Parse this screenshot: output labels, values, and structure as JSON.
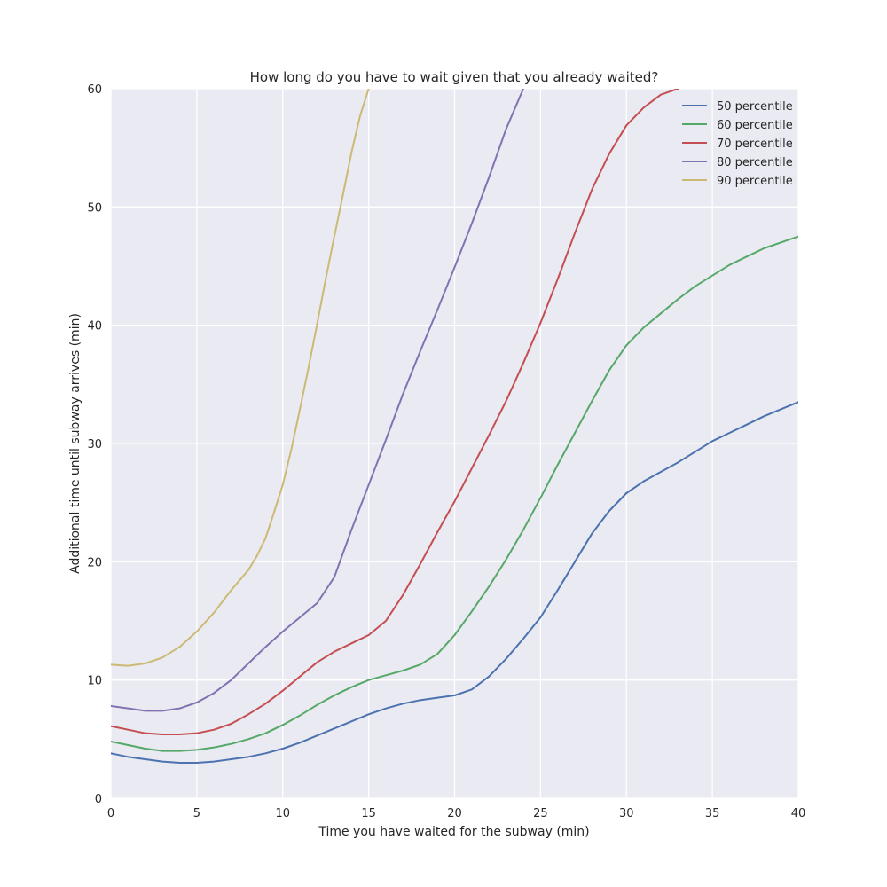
{
  "chart_data": {
    "type": "line",
    "title": "How long do you have to wait given that you already waited?",
    "xlabel": "Time you have waited for the subway (min)",
    "ylabel": "Additional time until subway arrives (min)",
    "xlim": [
      0,
      40
    ],
    "ylim": [
      0,
      60
    ],
    "xticks": [
      0,
      5,
      10,
      15,
      20,
      25,
      30,
      35,
      40
    ],
    "yticks": [
      0,
      10,
      20,
      30,
      40,
      50,
      60
    ],
    "grid": true,
    "legend_position": "top-right",
    "background": "#eaeaf2",
    "series": [
      {
        "name": "50 percentile",
        "color": "#4c72b0",
        "x": [
          0,
          1,
          2,
          3,
          4,
          5,
          6,
          7,
          8,
          9,
          10,
          11,
          12,
          13,
          14,
          15,
          16,
          17,
          18,
          19,
          20,
          21,
          22,
          23,
          24,
          25,
          26,
          27,
          28,
          29,
          30,
          31,
          32,
          33,
          34,
          35,
          36,
          37,
          38,
          39,
          40
        ],
        "values": [
          3.8,
          3.5,
          3.3,
          3.1,
          3.0,
          3.0,
          3.1,
          3.3,
          3.5,
          3.8,
          4.2,
          4.7,
          5.3,
          5.9,
          6.5,
          7.1,
          7.6,
          8.0,
          8.3,
          8.5,
          8.7,
          9.2,
          10.3,
          11.8,
          13.5,
          15.3,
          17.6,
          20.0,
          22.4,
          24.3,
          25.8,
          26.8,
          27.6,
          28.4,
          29.3,
          30.2,
          30.9,
          31.6,
          32.3,
          32.9,
          33.5
        ]
      },
      {
        "name": "60 percentile",
        "color": "#55a868",
        "x": [
          0,
          1,
          2,
          3,
          4,
          5,
          6,
          7,
          8,
          9,
          10,
          11,
          12,
          13,
          14,
          15,
          16,
          17,
          18,
          19,
          20,
          21,
          22,
          23,
          24,
          25,
          26,
          27,
          28,
          29,
          30,
          31,
          32,
          33,
          34,
          35,
          36,
          37,
          38,
          39,
          40
        ],
        "values": [
          4.8,
          4.5,
          4.2,
          4.0,
          4.0,
          4.1,
          4.3,
          4.6,
          5.0,
          5.5,
          6.2,
          7.0,
          7.9,
          8.7,
          9.4,
          10.0,
          10.4,
          10.8,
          11.3,
          12.2,
          13.8,
          15.8,
          17.9,
          20.2,
          22.7,
          25.4,
          28.2,
          30.9,
          33.6,
          36.2,
          38.3,
          39.8,
          41.0,
          42.2,
          43.3,
          44.2,
          45.1,
          45.8,
          46.5,
          47.0,
          47.5
        ]
      },
      {
        "name": "70 percentile",
        "color": "#c44e52",
        "x": [
          0,
          1,
          2,
          3,
          4,
          5,
          6,
          7,
          8,
          9,
          10,
          11,
          12,
          13,
          14,
          15,
          16,
          17,
          18,
          19,
          20,
          21,
          22,
          23,
          24,
          25,
          26,
          27,
          28,
          29,
          30,
          31,
          32,
          33
        ],
        "values": [
          6.1,
          5.8,
          5.5,
          5.4,
          5.4,
          5.5,
          5.8,
          6.3,
          7.1,
          8.0,
          9.1,
          10.3,
          11.5,
          12.4,
          13.1,
          13.8,
          15.0,
          17.2,
          19.8,
          22.5,
          25.1,
          27.9,
          30.7,
          33.6,
          36.8,
          40.2,
          43.9,
          47.8,
          51.5,
          54.5,
          56.9,
          58.4,
          59.5,
          60.0
        ]
      },
      {
        "name": "80 percentile",
        "color": "#8172b2",
        "x": [
          0,
          1,
          2,
          3,
          4,
          5,
          6,
          7,
          8,
          9,
          10,
          11,
          12,
          13,
          14,
          15,
          16,
          17,
          18,
          19,
          20,
          21,
          22,
          23,
          24
        ],
        "values": [
          7.8,
          7.6,
          7.4,
          7.4,
          7.6,
          8.1,
          8.9,
          10.0,
          11.4,
          12.8,
          14.1,
          15.3,
          16.5,
          18.7,
          22.7,
          26.5,
          30.3,
          34.2,
          37.8,
          41.3,
          44.9,
          48.6,
          52.5,
          56.6,
          60.0
        ]
      },
      {
        "name": "90 percentile",
        "color": "#ccb974",
        "x": [
          0,
          1,
          2,
          3,
          4,
          5,
          6,
          7,
          8,
          8.5,
          9,
          9.5,
          10,
          10.5,
          11,
          11.5,
          12,
          12.5,
          13,
          13.5,
          14,
          14.5,
          15
        ],
        "values": [
          11.3,
          11.2,
          11.4,
          11.9,
          12.8,
          14.1,
          15.7,
          17.6,
          19.3,
          20.5,
          22.0,
          24.2,
          26.5,
          29.5,
          32.9,
          36.4,
          40.1,
          43.9,
          47.5,
          51.0,
          54.6,
          57.7,
          60.0
        ]
      }
    ]
  }
}
